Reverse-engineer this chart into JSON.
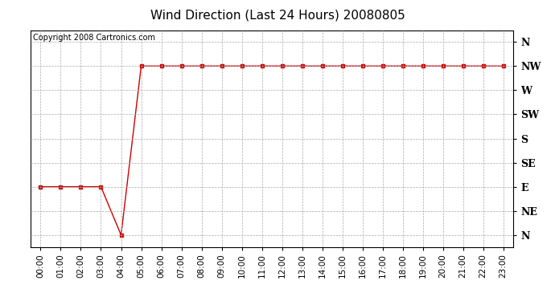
{
  "title": "Wind Direction (Last 24 Hours) 20080805",
  "copyright_text": "Copyright 2008 Cartronics.com",
  "x_labels": [
    "00:00",
    "01:00",
    "02:00",
    "03:00",
    "04:00",
    "05:00",
    "06:00",
    "07:00",
    "08:00",
    "09:00",
    "10:00",
    "11:00",
    "12:00",
    "13:00",
    "14:00",
    "15:00",
    "16:00",
    "17:00",
    "18:00",
    "19:00",
    "20:00",
    "21:00",
    "22:00",
    "23:00"
  ],
  "y_ticks": [
    360,
    315,
    270,
    225,
    180,
    135,
    90,
    45,
    0
  ],
  "y_tick_labels": [
    "N",
    "NW",
    "W",
    "SW",
    "S",
    "SE",
    "E",
    "NE",
    "N"
  ],
  "y_min": -22,
  "y_max": 382,
  "data_x": [
    0,
    1,
    2,
    3,
    4,
    5,
    6,
    7,
    8,
    9,
    10,
    11,
    12,
    13,
    14,
    15,
    16,
    17,
    18,
    19,
    20,
    21,
    22,
    23
  ],
  "data_y": [
    90,
    90,
    90,
    90,
    0,
    315,
    315,
    315,
    315,
    315,
    315,
    315,
    315,
    315,
    315,
    315,
    315,
    315,
    315,
    315,
    315,
    315,
    315,
    315
  ],
  "line_color": "#cc0000",
  "marker": "s",
  "marker_size": 2.5,
  "background_color": "#ffffff",
  "grid_color": "#aaaaaa",
  "title_fontsize": 11,
  "tick_fontsize": 7.5,
  "ytick_fontsize": 9,
  "copyright_fontsize": 7
}
